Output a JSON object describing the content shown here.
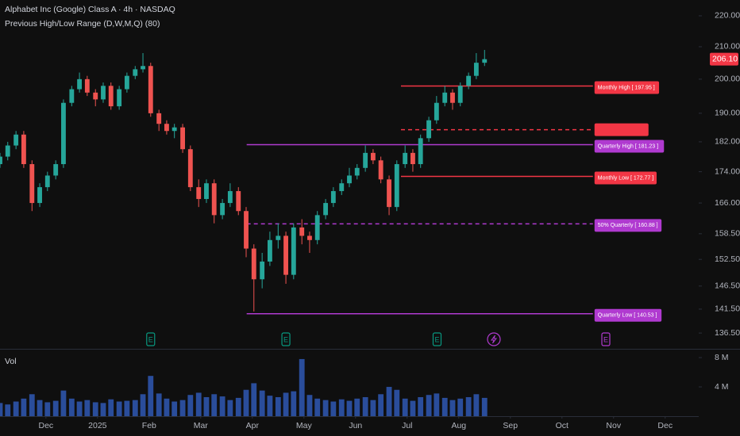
{
  "chart_data": {
    "type": "candlestick",
    "title": "Alphabet Inc (Google) Class A · 4h · NASDAQ",
    "subtitle": "Previous High/Low Range (D,W,M,Q) (80)",
    "log_scale": true,
    "up_color": "#26a69a",
    "down_color": "#ef5350",
    "xlim": [
      0.11,
      13.65
    ],
    "ylim": [
      133.3,
      225.3
    ],
    "xticks": [
      {
        "value": 1,
        "label": "Dec"
      },
      {
        "value": 2,
        "label": "2025"
      },
      {
        "value": 3,
        "label": "Feb"
      },
      {
        "value": 4,
        "label": "Mar"
      },
      {
        "value": 5,
        "label": "Apr"
      },
      {
        "value": 6,
        "label": "May"
      },
      {
        "value": 7,
        "label": "Jun"
      },
      {
        "value": 8,
        "label": "Jul"
      },
      {
        "value": 9,
        "label": "Aug"
      },
      {
        "value": 10,
        "label": "Sep"
      },
      {
        "value": 11,
        "label": "Oct"
      },
      {
        "value": 12,
        "label": "Nov"
      },
      {
        "value": 13,
        "label": "Dec"
      }
    ],
    "yticks": [
      {
        "value": 220,
        "label": "220.00"
      },
      {
        "value": 210,
        "label": "210.00"
      },
      {
        "value": 200,
        "label": "200.00"
      },
      {
        "value": 190,
        "label": "190.00"
      },
      {
        "value": 182,
        "label": "182.00"
      },
      {
        "value": 174,
        "label": "174.00"
      },
      {
        "value": 166,
        "label": "166.00"
      },
      {
        "value": 158.5,
        "label": "158.50"
      },
      {
        "value": 152.5,
        "label": "152.50"
      },
      {
        "value": 146.5,
        "label": "146.50"
      },
      {
        "value": 141.5,
        "label": "141.50"
      },
      {
        "value": 136.5,
        "label": "136.50"
      }
    ],
    "x": [
      0.11,
      0.26,
      0.42,
      0.57,
      0.73,
      0.88,
      1.03,
      1.19,
      1.34,
      1.5,
      1.65,
      1.8,
      1.96,
      2.11,
      2.26,
      2.42,
      2.57,
      2.73,
      2.88,
      3.03,
      3.19,
      3.34,
      3.49,
      3.65,
      3.8,
      3.96,
      4.11,
      4.26,
      4.42,
      4.57,
      4.73,
      4.88,
      5.03,
      5.19,
      5.34,
      5.5,
      5.65,
      5.8,
      5.96,
      6.11,
      6.26,
      6.42,
      6.57,
      6.73,
      6.88,
      7.03,
      7.19,
      7.34,
      7.49,
      7.65,
      7.8,
      7.96,
      8.11,
      8.26,
      8.42,
      8.57,
      8.73,
      8.88,
      9.03,
      9.19,
      9.34,
      9.5
    ],
    "open": [
      176,
      178,
      181,
      184,
      176,
      166,
      170,
      173,
      176,
      193,
      197,
      200,
      196,
      194,
      198,
      192,
      197,
      201,
      203,
      204,
      190,
      187,
      185,
      186,
      180,
      170,
      167,
      171,
      163,
      166,
      169,
      164,
      155,
      148,
      152,
      157,
      158,
      149,
      160,
      158,
      157,
      163,
      166,
      169,
      171,
      173,
      175,
      179,
      177,
      172,
      165,
      176,
      179,
      176,
      183,
      188,
      193,
      196,
      193,
      198,
      201,
      205
    ],
    "high": [
      179,
      182,
      185,
      185,
      177,
      171,
      174,
      177,
      194,
      198,
      202,
      201,
      197,
      199,
      199,
      198,
      202,
      204,
      208,
      205,
      191,
      188,
      187,
      187,
      181,
      172,
      172,
      172,
      167,
      171,
      170,
      165,
      156,
      154,
      159,
      161,
      159,
      161,
      162,
      159,
      164,
      167,
      170,
      172,
      175,
      176,
      181,
      180,
      178,
      173,
      177,
      181,
      180,
      184,
      189,
      195,
      198,
      197,
      199,
      202,
      208,
      209
    ],
    "low": [
      175,
      177,
      180,
      175,
      164,
      165,
      169,
      172,
      175,
      192,
      196,
      195,
      192,
      193,
      191,
      191,
      196,
      200,
      202,
      189,
      185,
      184,
      183,
      179,
      169,
      165,
      166,
      161,
      162,
      165,
      163,
      153,
      141,
      146,
      151,
      155,
      147,
      148,
      156,
      154,
      156,
      162,
      165,
      168,
      170,
      172,
      174,
      176,
      171,
      163,
      164,
      175,
      174,
      175,
      182,
      187,
      192,
      191,
      192,
      197,
      200,
      204
    ],
    "close": [
      178,
      181,
      184,
      176,
      166,
      170,
      173,
      176,
      193,
      197,
      200,
      196,
      194,
      198,
      192,
      197,
      201,
      203,
      204,
      190,
      187,
      185,
      186,
      180,
      170,
      167,
      171,
      163,
      166,
      169,
      164,
      155,
      148,
      152,
      157,
      158,
      149,
      160,
      158,
      157,
      163,
      166,
      169,
      171,
      173,
      175,
      179,
      177,
      172,
      165,
      176,
      179,
      176,
      183,
      188,
      193,
      196,
      193,
      198,
      201,
      205,
      206.1
    ],
    "last_price": {
      "value": 206.1,
      "label": "206.10",
      "color": "#f23645"
    },
    "levels": [
      {
        "label": "Monthly High [ 197.95 ]",
        "value": 197.95,
        "color": "#f23645",
        "dashed": false,
        "x": [
          7.88,
          11.6
        ]
      },
      {
        "value": 185.36,
        "color": "#f23645",
        "dashed": true,
        "x": [
          7.88,
          11.6
        ]
      },
      {
        "label": "Quarterly High [ 181.23 ]",
        "value": 181.23,
        "color": "#b03ad0",
        "dashed": false,
        "x": [
          4.89,
          11.6
        ]
      },
      {
        "label": "Monthly Low [ 172.77 ]",
        "value": 172.77,
        "color": "#f23645",
        "dashed": false,
        "x": [
          7.88,
          11.6
        ]
      },
      {
        "label": "50% Quarterly [ 160.88 ]",
        "value": 160.88,
        "color": "#b03ad0",
        "dashed": true,
        "x": [
          4.89,
          11.6
        ]
      },
      {
        "label": "Quarterly Low [ 140.53 ]",
        "value": 140.53,
        "color": "#b03ad0",
        "dashed": false,
        "x": [
          4.89,
          11.6
        ]
      }
    ],
    "events": [
      {
        "x": 3.03,
        "label": "E",
        "color": "#089981"
      },
      {
        "x": 5.65,
        "label": "E",
        "color": "#089981"
      },
      {
        "x": 8.58,
        "label": "E",
        "color": "#089981"
      },
      {
        "x": 11.85,
        "label": "E",
        "color": "#b03ad0"
      }
    ],
    "volume": {
      "label": "Vol",
      "color": "#2a4d9b",
      "ylim": [
        0,
        9.2
      ],
      "yticks": [
        {
          "value": 8,
          "label": "8 M"
        },
        {
          "value": 4,
          "label": "4 M"
        }
      ],
      "values": [
        1.8,
        1.6,
        2.0,
        2.4,
        3.0,
        2.2,
        1.9,
        2.1,
        3.5,
        2.4,
        2.0,
        2.2,
        1.9,
        1.8,
        2.3,
        2.0,
        2.1,
        2.2,
        3.0,
        5.5,
        3.1,
        2.4,
        2.0,
        2.2,
        2.9,
        3.2,
        2.6,
        3.0,
        2.7,
        2.2,
        2.5,
        3.6,
        4.5,
        3.5,
        2.8,
        2.6,
        3.2,
        3.4,
        7.8,
        2.9,
        2.4,
        2.2,
        2.0,
        2.3,
        2.1,
        2.4,
        2.6,
        2.2,
        3.0,
        4.0,
        3.6,
        2.4,
        2.1,
        2.6,
        2.9,
        3.1,
        2.5,
        2.2,
        2.4,
        2.6,
        3.0,
        2.5
      ]
    }
  }
}
